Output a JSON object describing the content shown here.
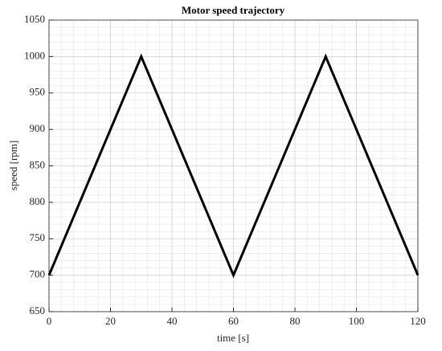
{
  "chart_data": {
    "type": "line",
    "title": "Motor speed trajectory",
    "xlabel": "time [s]",
    "ylabel": "speed [rpm]",
    "x": [
      0,
      30,
      60,
      90,
      120
    ],
    "series": [
      {
        "name": "speed",
        "color": "#000000",
        "values": [
          700,
          1000,
          700,
          1000,
          700
        ]
      }
    ],
    "xlim": [
      0,
      120
    ],
    "xticks": [
      0,
      20,
      40,
      60,
      80,
      100,
      120
    ],
    "ylim": [
      650,
      1050
    ],
    "yticks": [
      650,
      700,
      750,
      800,
      850,
      900,
      950,
      1000,
      1050
    ],
    "grid": true,
    "minor_grid": true
  }
}
